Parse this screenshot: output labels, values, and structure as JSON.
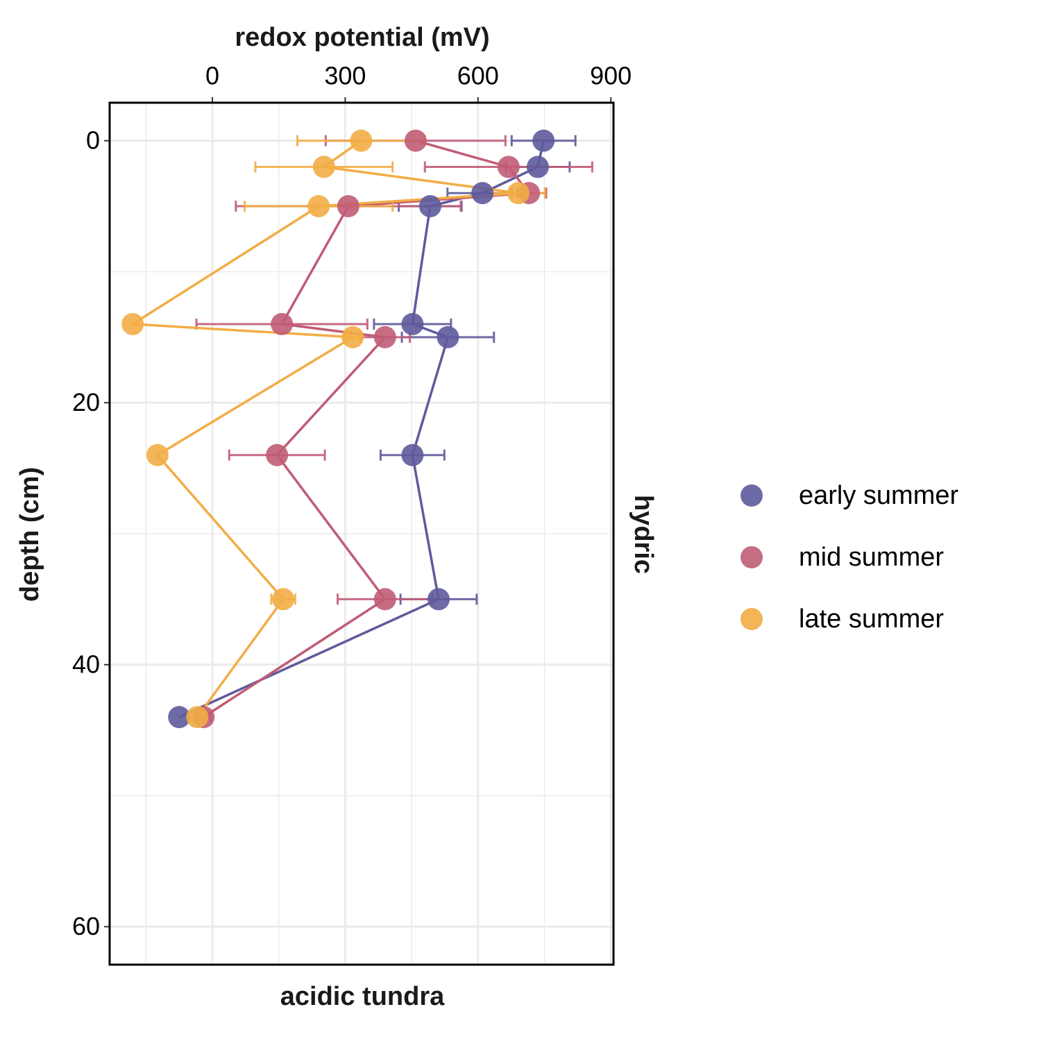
{
  "chart_data": {
    "type": "scatter",
    "x_label": "redox potential (mV)",
    "y_label": "depth (cm)",
    "facet_column": "acidic tundra",
    "facet_row": "hydric",
    "xlim": [
      -232,
      906
    ],
    "xticks": [
      0,
      300,
      600,
      900
    ],
    "x_minor_grid": [
      -150,
      150,
      450,
      750
    ],
    "ylim": [
      -2.9,
      62.9
    ],
    "yticks": [
      0,
      20,
      40,
      60
    ],
    "y_minor_grid": [
      10,
      30,
      50
    ],
    "y_reversed": true,
    "x_axis_position": "top",
    "grid": true,
    "connect_points": true,
    "legend_position": "right",
    "series": [
      {
        "name": "early summer",
        "color": "#5e5a9c",
        "x": [
          748,
          735,
          610,
          492,
          452,
          532,
          452,
          511,
          -75
        ],
        "y": [
          0,
          2,
          4,
          5,
          14,
          15,
          24,
          35,
          44
        ],
        "xerr": [
          72,
          72,
          79,
          71,
          87,
          104,
          72,
          86,
          null
        ]
      },
      {
        "name": "mid summer",
        "color": "#c05c75",
        "x": [
          459,
          669,
          715,
          307,
          157,
          390,
          146,
          390,
          -20
        ],
        "y": [
          0,
          2,
          4,
          5,
          14,
          15,
          24,
          35,
          44
        ],
        "xerr": [
          203,
          189,
          39,
          254,
          193,
          56,
          108,
          107,
          16
        ]
      },
      {
        "name": "late summer",
        "color": "#f2ad45",
        "x": [
          336,
          252,
          691,
          240,
          -180,
          317,
          -124,
          160,
          -34
        ],
        "y": [
          0,
          2,
          4,
          5,
          14,
          15,
          24,
          35,
          44
        ],
        "xerr": [
          144,
          155,
          60,
          167,
          null,
          18,
          null,
          27,
          12
        ]
      }
    ]
  }
}
